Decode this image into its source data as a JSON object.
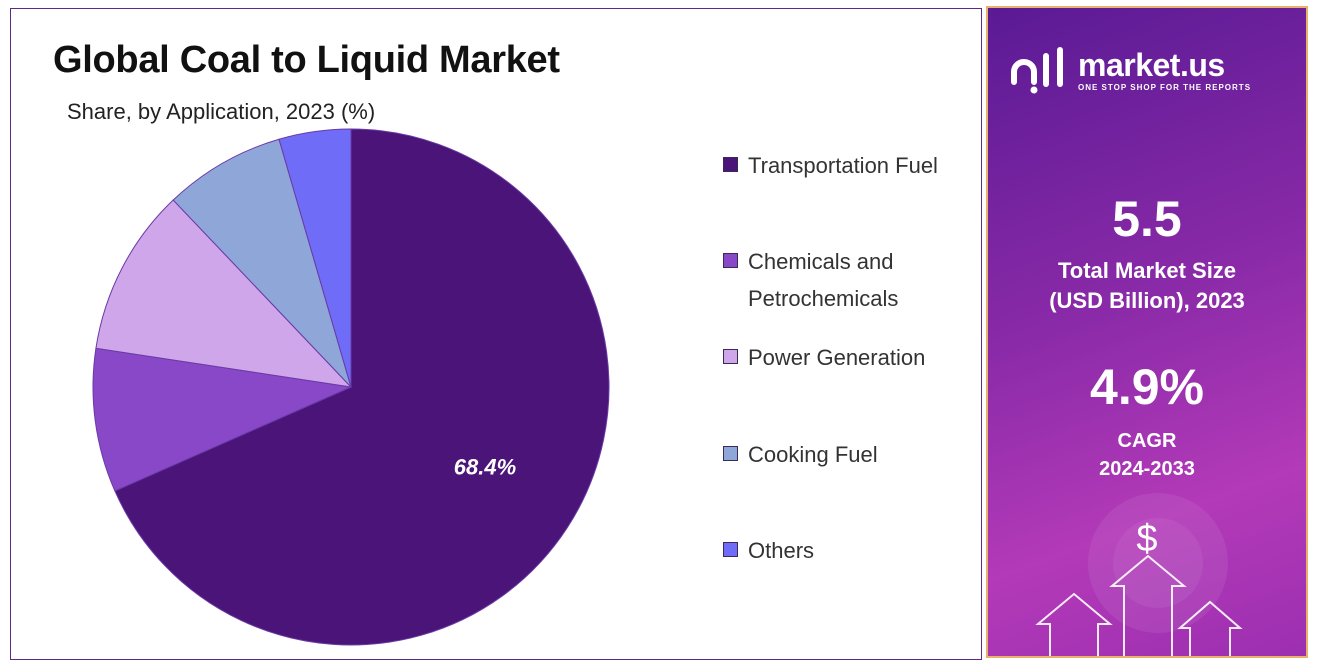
{
  "title": "Global Coal to Liquid Market",
  "subtitle": "Share, by Application, 2023 (%)",
  "chart_data": {
    "type": "pie",
    "title": "Global Coal to Liquid Market",
    "subtitle": "Share, by Application, 2023 (%)",
    "categories": [
      "Transportation Fuel",
      "Chemicals and Petrochemicals",
      "Power Generation",
      "Cooking Fuel",
      "Others"
    ],
    "values": [
      68.4,
      9.0,
      10.5,
      7.6,
      4.5
    ],
    "colors": [
      "#4b1479",
      "#8848c8",
      "#cfa6e9",
      "#8fa6d8",
      "#6f6cf8"
    ],
    "data_labels": [
      "68.4%",
      "",
      "",
      "",
      ""
    ],
    "legend_position": "right"
  },
  "legend": [
    {
      "label": "Transportation Fuel",
      "color": "#4b1479"
    },
    {
      "label": "Chemicals and Petrochemicals",
      "color": "#8848c8"
    },
    {
      "label": "Power Generation",
      "color": "#cfa6e9"
    },
    {
      "label": "Cooking Fuel",
      "color": "#8fa6d8"
    },
    {
      "label": "Others",
      "color": "#6f6cf8"
    }
  ],
  "side_panel": {
    "brand_name": "market.us",
    "brand_tagline": "ONE STOP SHOP FOR THE REPORTS",
    "market_size_value": "5.5",
    "market_size_label_1": "Total Market Size",
    "market_size_label_2": "(USD Billion), 2023",
    "cagr_value": "4.9%",
    "cagr_label_1": "CAGR",
    "cagr_label_2": "2024-2033",
    "dollar_symbol": "$"
  }
}
